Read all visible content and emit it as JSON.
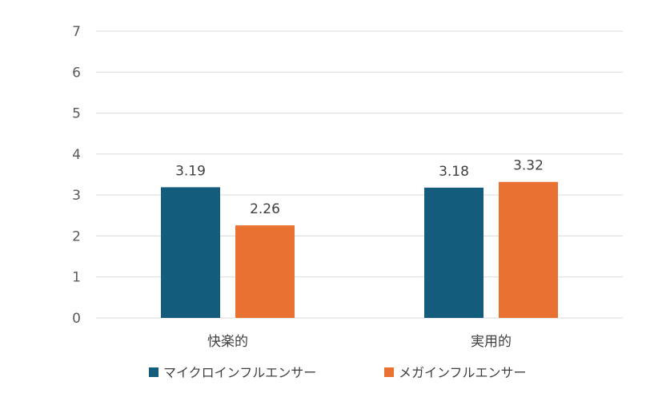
{
  "chart_data": {
    "type": "bar",
    "categories": [
      "快楽的",
      "実用的"
    ],
    "series": [
      {
        "name": "マイクロインフルエンサー",
        "color": "#145c7c",
        "values": [
          3.19,
          3.18
        ]
      },
      {
        "name": "メガインフルエンサー",
        "color": "#e97132",
        "values": [
          2.26,
          3.32
        ]
      }
    ],
    "ylim": [
      0,
      7
    ],
    "yticks": [
      0,
      1,
      2,
      3,
      4,
      5,
      6,
      7
    ],
    "grid": true,
    "legend": "bottom",
    "data_labels": [
      "3.19",
      "3.18",
      "2.26",
      "3.32"
    ]
  }
}
